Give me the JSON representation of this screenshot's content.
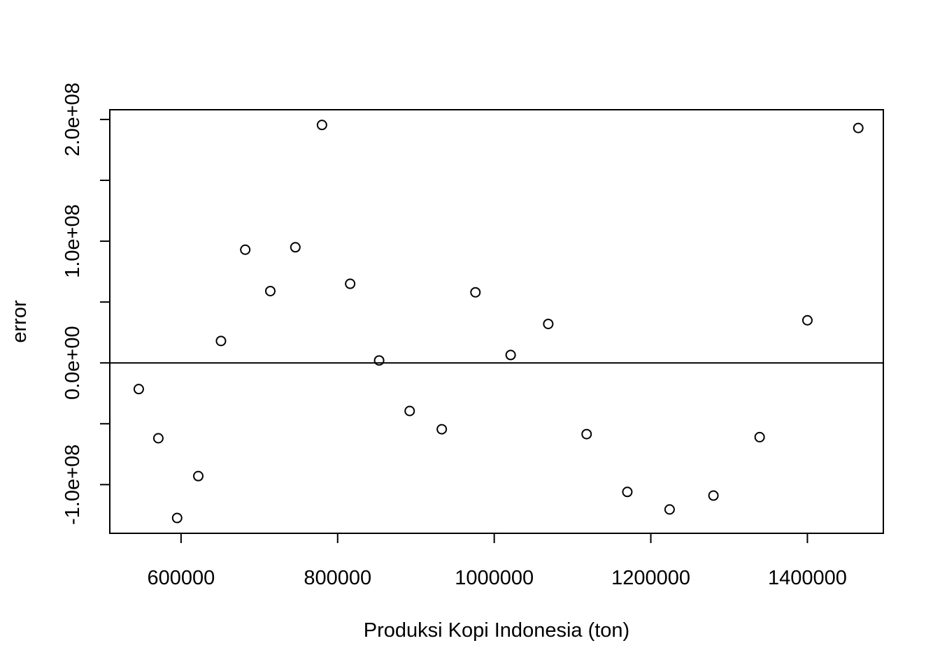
{
  "chart_data": {
    "type": "scatter",
    "title": "",
    "xlabel": "Produksi Kopi Indonesia (ton)",
    "ylabel": "error",
    "xlim": [
      509000,
      1497000
    ],
    "ylim": [
      -140000000,
      208000000
    ],
    "x_ticks": [
      600000,
      800000,
      1000000,
      1200000,
      1400000
    ],
    "x_tick_labels": [
      "600000",
      "800000",
      "1000000",
      "1200000",
      "1400000"
    ],
    "y_ticks": [
      -100000000,
      -50000000,
      0,
      50000000,
      100000000,
      150000000,
      200000000
    ],
    "y_tick_labels": [
      "-1.0e+08",
      "",
      "0.0e+00",
      "",
      "1.0e+08",
      "",
      "2.0e+08"
    ],
    "reference_line_y": 0,
    "grid": false,
    "series": [
      {
        "points": [
          {
            "x": 546000,
            "y": -21500000
          },
          {
            "x": 571000,
            "y": -61900000
          },
          {
            "x": 595000,
            "y": -127400000
          },
          {
            "x": 622000,
            "y": -93000000
          },
          {
            "x": 651000,
            "y": 18000000
          },
          {
            "x": 682000,
            "y": 93000000
          },
          {
            "x": 714000,
            "y": 59000000
          },
          {
            "x": 746000,
            "y": 95000000
          },
          {
            "x": 780000,
            "y": 195500000
          },
          {
            "x": 816000,
            "y": 65000000
          },
          {
            "x": 853000,
            "y": 2000000
          },
          {
            "x": 892000,
            "y": -39500000
          },
          {
            "x": 933000,
            "y": -54500000
          },
          {
            "x": 976000,
            "y": 58000000
          },
          {
            "x": 1021000,
            "y": 6500000
          },
          {
            "x": 1069000,
            "y": 32000000
          },
          {
            "x": 1118000,
            "y": -58500000
          },
          {
            "x": 1170000,
            "y": -106000000
          },
          {
            "x": 1224000,
            "y": -120400000
          },
          {
            "x": 1280000,
            "y": -109000000
          },
          {
            "x": 1339000,
            "y": -61000000
          },
          {
            "x": 1400000,
            "y": 35000000
          },
          {
            "x": 1465000,
            "y": 193000000
          }
        ]
      }
    ]
  }
}
